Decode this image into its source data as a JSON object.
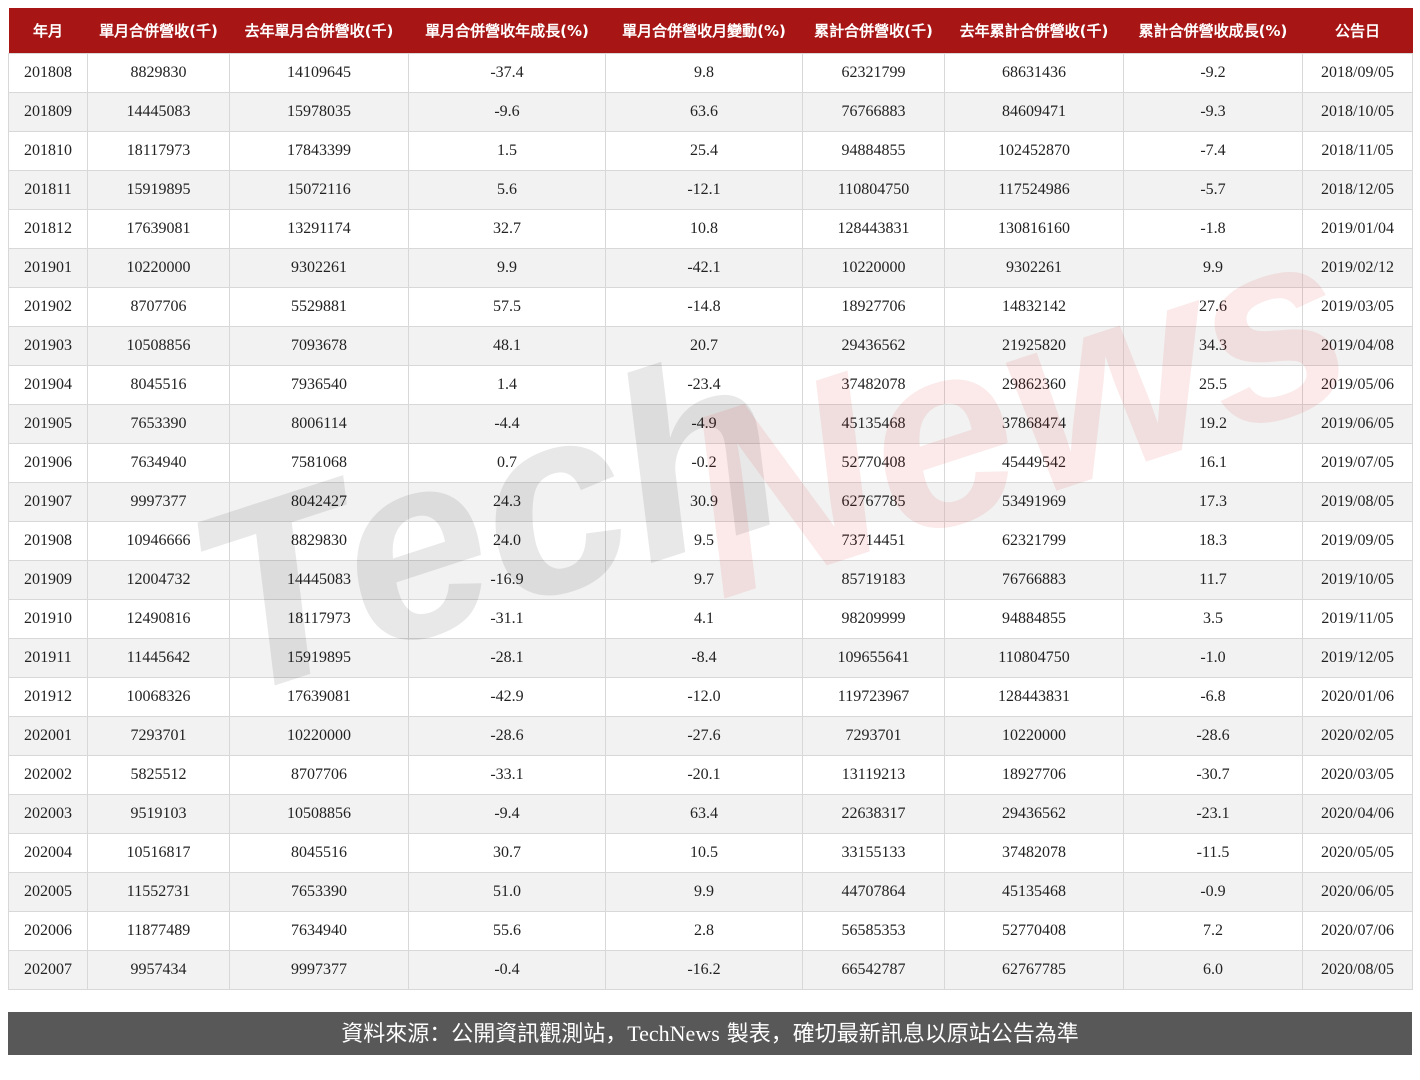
{
  "table": {
    "headers": [
      "年月",
      "單月合併營收(千)",
      "去年單月合併營收(千)",
      "單月合併營收年成長(%)",
      "單月合併營收月變動(%)",
      "累計合併營收(千)",
      "去年累計合併營收(千)",
      "累計合併營收成長(%)",
      "公告日"
    ],
    "rows": [
      [
        "201808",
        "8829830",
        "14109645",
        "-37.4",
        "9.8",
        "62321799",
        "68631436",
        "-9.2",
        "2018/09/05"
      ],
      [
        "201809",
        "14445083",
        "15978035",
        "-9.6",
        "63.6",
        "76766883",
        "84609471",
        "-9.3",
        "2018/10/05"
      ],
      [
        "201810",
        "18117973",
        "17843399",
        "1.5",
        "25.4",
        "94884855",
        "102452870",
        "-7.4",
        "2018/11/05"
      ],
      [
        "201811",
        "15919895",
        "15072116",
        "5.6",
        "-12.1",
        "110804750",
        "117524986",
        "-5.7",
        "2018/12/05"
      ],
      [
        "201812",
        "17639081",
        "13291174",
        "32.7",
        "10.8",
        "128443831",
        "130816160",
        "-1.8",
        "2019/01/04"
      ],
      [
        "201901",
        "10220000",
        "9302261",
        "9.9",
        "-42.1",
        "10220000",
        "9302261",
        "9.9",
        "2019/02/12"
      ],
      [
        "201902",
        "8707706",
        "5529881",
        "57.5",
        "-14.8",
        "18927706",
        "14832142",
        "27.6",
        "2019/03/05"
      ],
      [
        "201903",
        "10508856",
        "7093678",
        "48.1",
        "20.7",
        "29436562",
        "21925820",
        "34.3",
        "2019/04/08"
      ],
      [
        "201904",
        "8045516",
        "7936540",
        "1.4",
        "-23.4",
        "37482078",
        "29862360",
        "25.5",
        "2019/05/06"
      ],
      [
        "201905",
        "7653390",
        "8006114",
        "-4.4",
        "-4.9",
        "45135468",
        "37868474",
        "19.2",
        "2019/06/05"
      ],
      [
        "201906",
        "7634940",
        "7581068",
        "0.7",
        "-0.2",
        "52770408",
        "45449542",
        "16.1",
        "2019/07/05"
      ],
      [
        "201907",
        "9997377",
        "8042427",
        "24.3",
        "30.9",
        "62767785",
        "53491969",
        "17.3",
        "2019/08/05"
      ],
      [
        "201908",
        "10946666",
        "8829830",
        "24.0",
        "9.5",
        "73714451",
        "62321799",
        "18.3",
        "2019/09/05"
      ],
      [
        "201909",
        "12004732",
        "14445083",
        "-16.9",
        "9.7",
        "85719183",
        "76766883",
        "11.7",
        "2019/10/05"
      ],
      [
        "201910",
        "12490816",
        "18117973",
        "-31.1",
        "4.1",
        "98209999",
        "94884855",
        "3.5",
        "2019/11/05"
      ],
      [
        "201911",
        "11445642",
        "15919895",
        "-28.1",
        "-8.4",
        "109655641",
        "110804750",
        "-1.0",
        "2019/12/05"
      ],
      [
        "201912",
        "10068326",
        "17639081",
        "-42.9",
        "-12.0",
        "119723967",
        "128443831",
        "-6.8",
        "2020/01/06"
      ],
      [
        "202001",
        "7293701",
        "10220000",
        "-28.6",
        "-27.6",
        "7293701",
        "10220000",
        "-28.6",
        "2020/02/05"
      ],
      [
        "202002",
        "5825512",
        "8707706",
        "-33.1",
        "-20.1",
        "13119213",
        "18927706",
        "-30.7",
        "2020/03/05"
      ],
      [
        "202003",
        "9519103",
        "10508856",
        "-9.4",
        "63.4",
        "22638317",
        "29436562",
        "-23.1",
        "2020/04/06"
      ],
      [
        "202004",
        "10516817",
        "8045516",
        "30.7",
        "10.5",
        "33155133",
        "37482078",
        "-11.5",
        "2020/05/05"
      ],
      [
        "202005",
        "11552731",
        "7653390",
        "51.0",
        "9.9",
        "44707864",
        "45135468",
        "-0.9",
        "2020/06/05"
      ],
      [
        "202006",
        "11877489",
        "7634940",
        "55.6",
        "2.8",
        "56585353",
        "52770408",
        "7.2",
        "2020/07/06"
      ],
      [
        "202007",
        "9957434",
        "9997377",
        "-0.4",
        "-16.2",
        "66542787",
        "62767785",
        "6.0",
        "2020/08/05"
      ]
    ]
  },
  "footer": {
    "pre": "資料來源：公開資訊觀測站，",
    "brand": "TechNews",
    "post": " 製表，確切最新訊息以原站公告為準"
  },
  "watermark": {
    "text1": "Tech",
    "text2": "News"
  },
  "colors": {
    "header_bg": "#a81515",
    "footer_bg": "#585858",
    "stripe": "#f2f2f2"
  }
}
